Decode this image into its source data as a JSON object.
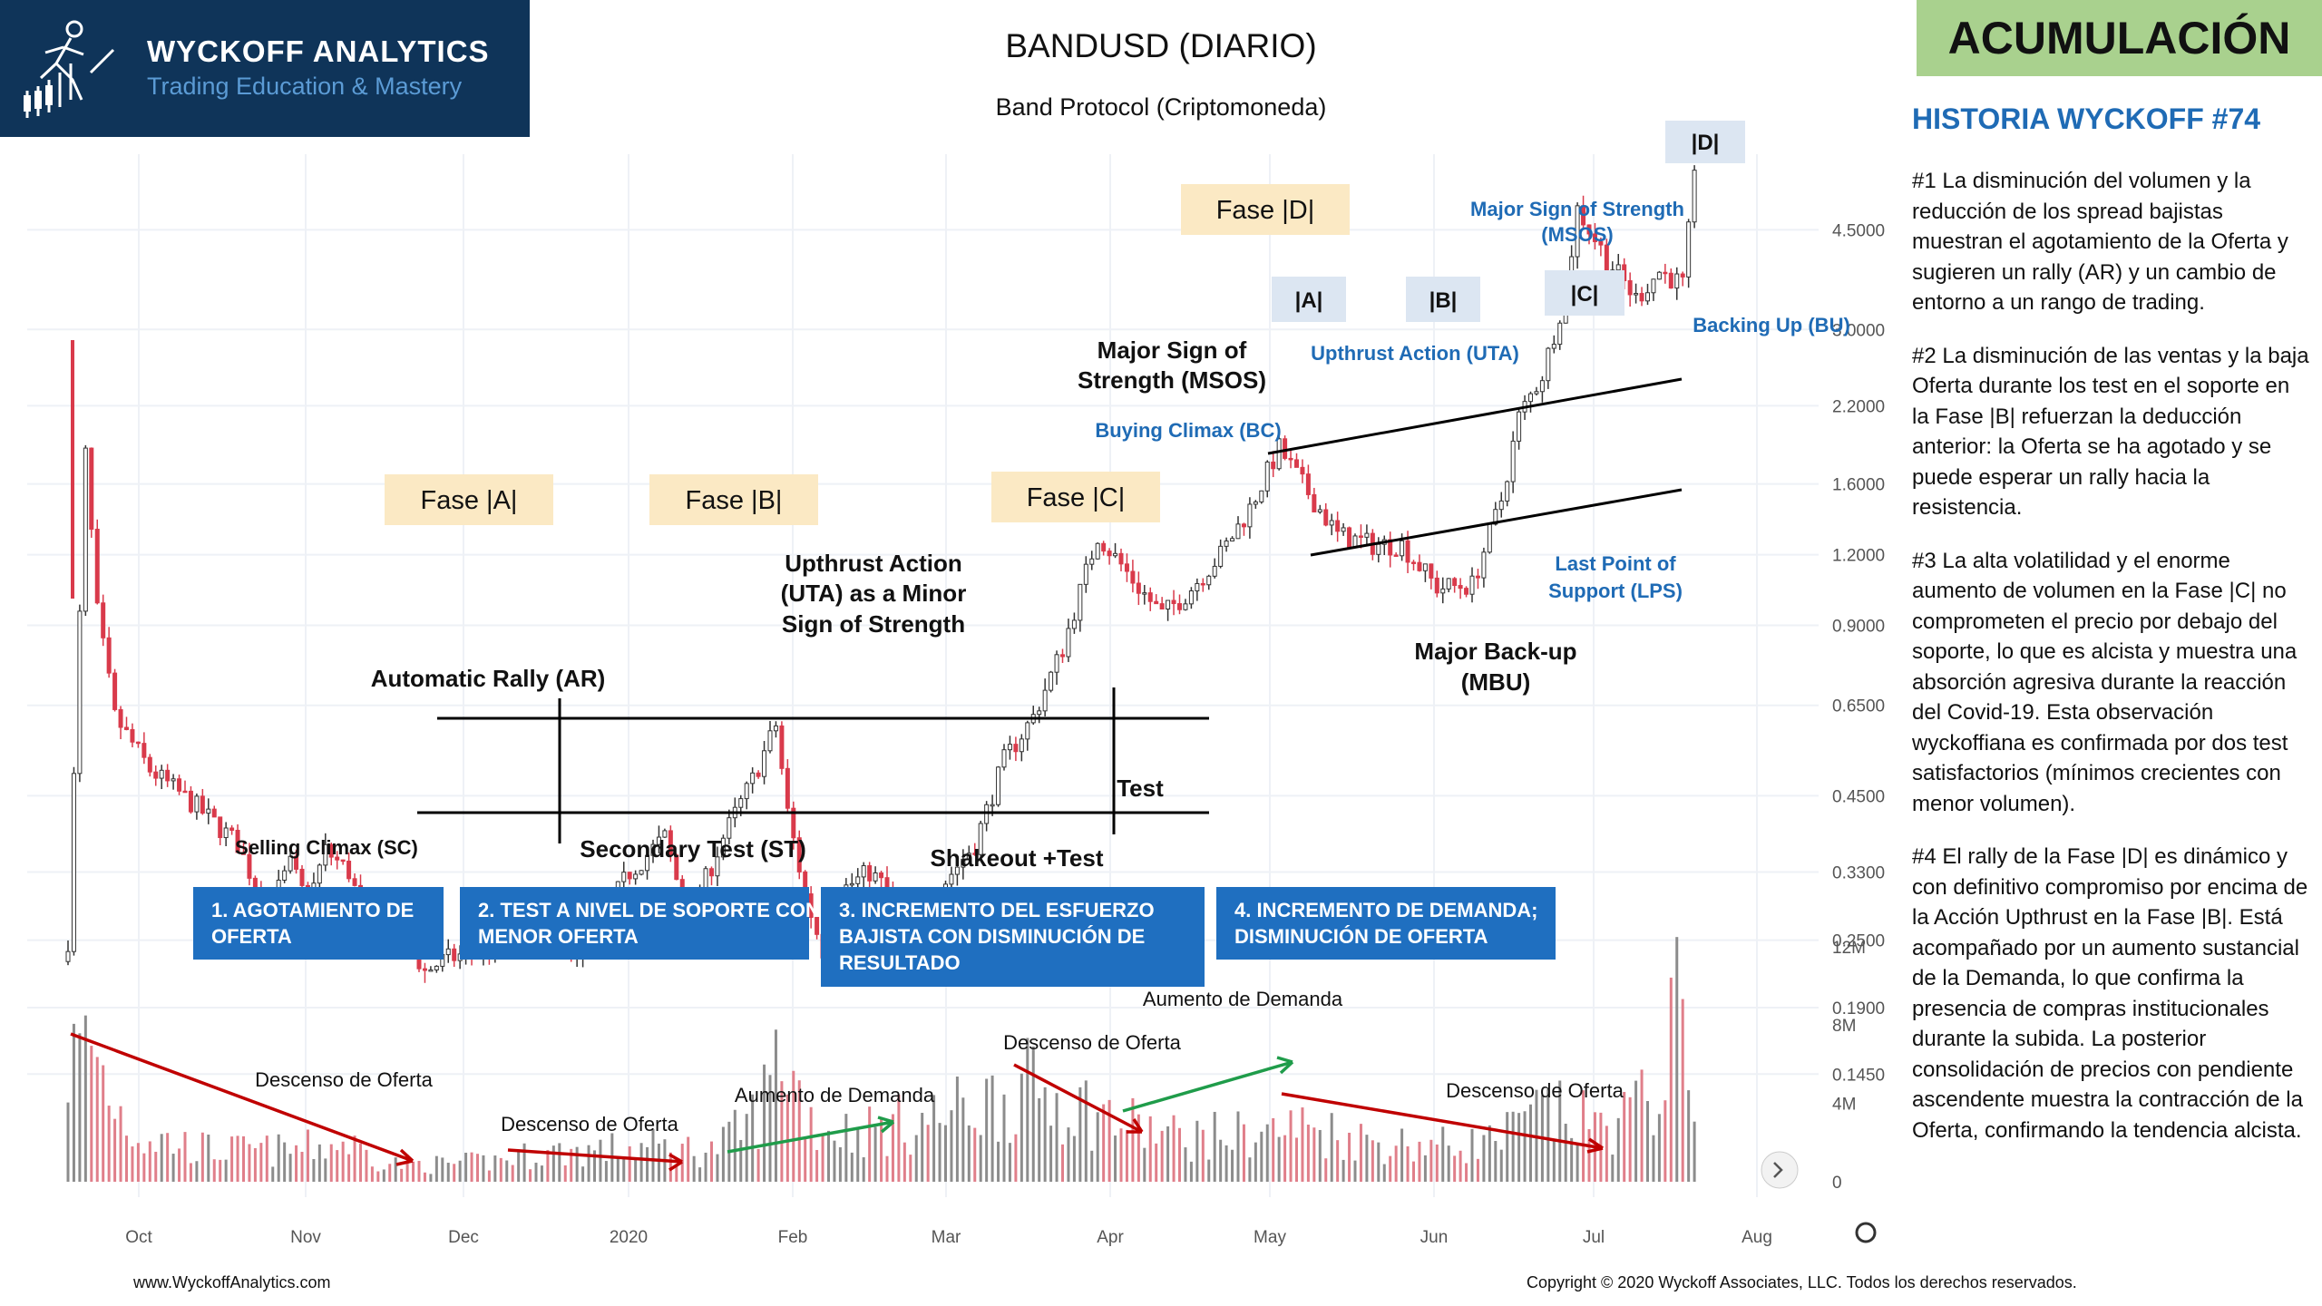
{
  "logo": {
    "title": "WYCKOFF ANALYTICS",
    "subtitle": "Trading Education & Mastery"
  },
  "header": {
    "title": "BANDUSD (DIARIO)",
    "subtitle": "Band Protocol (Criptomoneda)"
  },
  "badge": "ACUMULACIÓN",
  "story": {
    "title": "HISTORIA WYCKOFF #74",
    "p1": "#1 La disminución del volumen y la reducción de los spread bajistas muestran el agotamiento de la Oferta y sugieren un rally (AR) y un cambio de entorno a un rango de trading.",
    "p2": "#2 La disminución de las ventas y la baja Oferta durante los test en el soporte en la Fase |B| refuerzan la deducción anterior: la Oferta se ha agotado y se puede esperar un rally hacia la resistencia.",
    "p3": "#3 La alta volatilidad y el enorme aumento de volumen en la Fase |C| no comprometen el precio por debajo del soporte, lo que es alcista y muestra una absorción agresiva durante la reacción del Covid-19. Esta observación wyckoffiana es confirmada por dos test satisfactorios (mínimos crecientes con menor volumen).",
    "p4": "#4 El rally de la Fase |D| es dinámico y con definitivo compromiso por encima de la Acción Upthrust en la Fase |B|. Está acompañado por un aumento sustancial de la Demanda, lo que confirma la presencia de compras institucionales durante la subida. La posterior consolidación de precios con pendiente ascendente muestra la contracción de la Oferta, confirmando la tendencia alcista."
  },
  "footer": {
    "website": "www.WyckoffAnalytics.com",
    "copyright": "Copyright © 2020 Wyckoff Associates, LLC. Todos los derechos reservados."
  },
  "chart_data": {
    "type": "candlestick",
    "x_ticks": [
      "Oct",
      "Nov",
      "Dec",
      "2020",
      "Feb",
      "Mar",
      "Apr",
      "May",
      "Jun",
      "Jul",
      "Aug"
    ],
    "price_ticks": [
      "4.5000",
      "3.0000",
      "2.2000",
      "1.6000",
      "1.2000",
      "0.9000",
      "0.6500",
      "0.4500",
      "0.3300",
      "0.2500",
      "0.1900",
      "0.1450"
    ],
    "volume_ticks": [
      "12M",
      "8M",
      "4M",
      "0"
    ],
    "price_path": [
      [
        0,
        0.25
      ],
      [
        3,
        1.8
      ],
      [
        5,
        0.95
      ],
      [
        8,
        0.62
      ],
      [
        14,
        0.5
      ],
      [
        22,
        0.43
      ],
      [
        29,
        0.37
      ],
      [
        34,
        0.28
      ],
      [
        38,
        0.34
      ],
      [
        41,
        0.29
      ],
      [
        44,
        0.36
      ],
      [
        48,
        0.33
      ],
      [
        52,
        0.25
      ],
      [
        57,
        0.26
      ],
      [
        61,
        0.22
      ],
      [
        64,
        0.23
      ],
      [
        70,
        0.24
      ],
      [
        75,
        0.245
      ],
      [
        80,
        0.25
      ],
      [
        87,
        0.24
      ],
      [
        90,
        0.26
      ],
      [
        96,
        0.33
      ],
      [
        102,
        0.38
      ],
      [
        106,
        0.27
      ],
      [
        112,
        0.38
      ],
      [
        117,
        0.48
      ],
      [
        121,
        0.6
      ],
      [
        123,
        0.42
      ],
      [
        126,
        0.3
      ],
      [
        129,
        0.24
      ],
      [
        133,
        0.31
      ],
      [
        137,
        0.33
      ],
      [
        141,
        0.3
      ],
      [
        144,
        0.27
      ],
      [
        149,
        0.31
      ],
      [
        155,
        0.37
      ],
      [
        160,
        0.52
      ],
      [
        165,
        0.62
      ],
      [
        170,
        0.82
      ],
      [
        176,
        1.3
      ],
      [
        183,
        1.05
      ],
      [
        187,
        0.94
      ],
      [
        191,
        1.02
      ],
      [
        197,
        1.2
      ],
      [
        202,
        1.45
      ],
      [
        207,
        1.85
      ],
      [
        211,
        1.6
      ],
      [
        217,
        1.3
      ],
      [
        223,
        1.25
      ],
      [
        228,
        1.25
      ],
      [
        234,
        1.05
      ],
      [
        240,
        1.06
      ],
      [
        245,
        1.5
      ],
      [
        248,
        2.1
      ],
      [
        252,
        2.5
      ],
      [
        256,
        3.5
      ],
      [
        258,
        4.9
      ],
      [
        263,
        4.0
      ],
      [
        268,
        3.4
      ],
      [
        272,
        3.8
      ],
      [
        276,
        3.6
      ],
      [
        278,
        5.5
      ]
    ],
    "volume_path": [
      [
        0,
        7.5
      ],
      [
        4,
        9.0
      ],
      [
        12,
        3.0
      ],
      [
        25,
        2.0
      ],
      [
        38,
        2.0
      ],
      [
        48,
        2.5
      ],
      [
        55,
        1.2
      ],
      [
        64,
        1.1
      ],
      [
        72,
        1.3
      ],
      [
        80,
        1.8
      ],
      [
        90,
        2.0
      ],
      [
        100,
        2.2
      ],
      [
        110,
        2.0
      ],
      [
        118,
        4.5
      ],
      [
        122,
        9.0
      ],
      [
        128,
        3.5
      ],
      [
        135,
        3.2
      ],
      [
        148,
        4.0
      ],
      [
        156,
        5.0
      ],
      [
        165,
        6.0
      ],
      [
        172,
        5.0
      ],
      [
        180,
        3.8
      ],
      [
        190,
        2.8
      ],
      [
        200,
        3.0
      ],
      [
        212,
        3.5
      ],
      [
        224,
        2.5
      ],
      [
        236,
        2.3
      ],
      [
        244,
        2.6
      ],
      [
        252,
        4.5
      ],
      [
        262,
        3.5
      ],
      [
        270,
        5.0
      ],
      [
        274,
        9.0
      ],
      [
        276,
        11.5
      ],
      [
        278,
        8.0
      ]
    ],
    "phases": [
      "Fase |A|",
      "Fase |B|",
      "Fase |C|",
      "Fase |D|",
      "|A|",
      "|B|",
      "|C|",
      "|D|"
    ],
    "events": [
      "Selling Climax (SC)",
      "Automatic Rally (AR)",
      "Secondary Test (ST)",
      "Upthrust Action (UTA) as a Minor Sign of Strength",
      "Shakeout +Test",
      "Test",
      "Major Sign of Strength (MSOS)",
      "Buying Climax (BC)",
      "Upthrust Action (UTA)",
      "Major Sign of Strength (MSOS)",
      "Backing Up (BU)",
      "Last Point of Support (LPS)",
      "Major Back-up (MBU)"
    ],
    "panels": [
      "1. AGOTAMIENTO DE OFERTA",
      "2. TEST A NIVEL DE SOPORTE CON MENOR OFERTA",
      "3. INCREMENTO DEL ESFUERZO BAJISTA CON DISMINUCIÓN DE RESULTADO",
      "4. INCREMENTO DE DEMANDA; DISMINUCIÓN DE OFERTA"
    ],
    "volume_annotations": [
      "Descenso de Oferta",
      "Descenso de Oferta",
      "Aumento de Demanda",
      "Descenso de Oferta",
      "Aumento de Demanda",
      "Descenso de Oferta"
    ]
  }
}
